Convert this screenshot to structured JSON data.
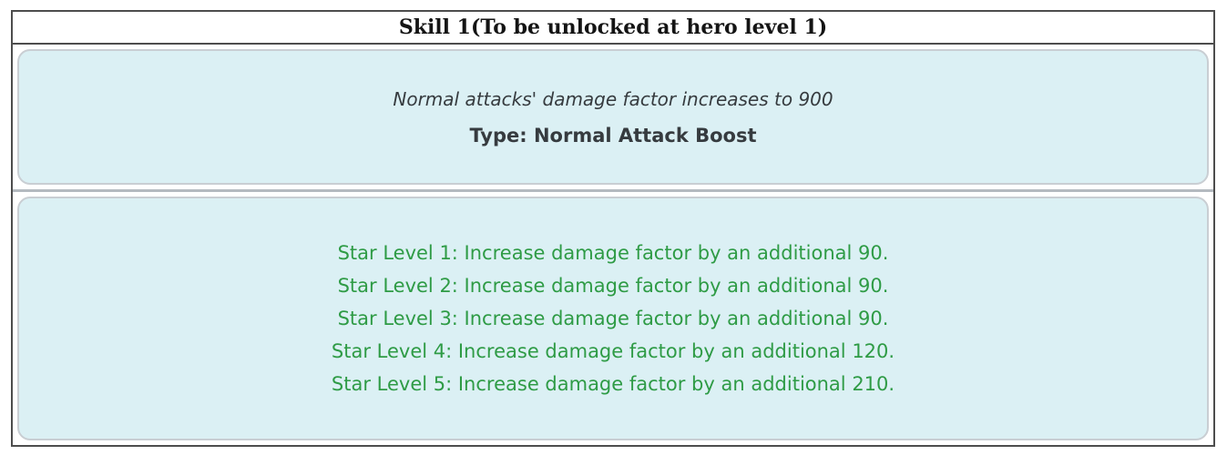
{
  "header": {
    "title": "Skill 1(To be unlocked at hero level 1)"
  },
  "skill_info": {
    "description": "Normal attacks' damage factor increases to 900",
    "type_line": "Type: Normal Attack Boost"
  },
  "star_levels": [
    "Star Level 1: Increase damage factor by an additional 90.",
    "Star Level 2: Increase damage factor by an additional 90.",
    "Star Level 3: Increase damage factor by an additional 90.",
    "Star Level 4: Increase damage factor by an additional 120.",
    "Star Level 5: Increase damage factor by an additional 210."
  ],
  "colors": {
    "panel_bg": "#dbf0f4",
    "panel_border": "#c9ced3",
    "outer_border": "#4d4d4d",
    "divider": "#b4bac0",
    "header_text": "#141414",
    "body_text": "#363b3f",
    "star_text": "#2e9b45"
  }
}
